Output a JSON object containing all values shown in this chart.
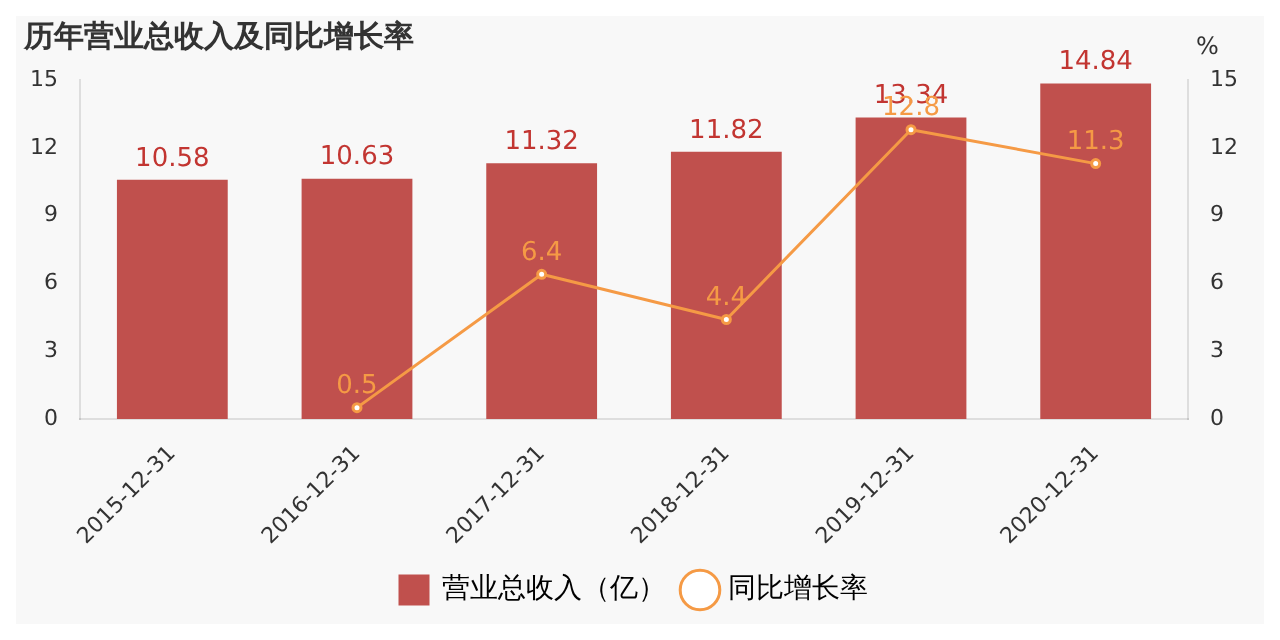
{
  "chart_data": {
    "type": "bar",
    "title": "历年营业总收入及同比增长率",
    "categories": [
      "2015-12-31",
      "2016-12-31",
      "2017-12-31",
      "2018-12-31",
      "2019-12-31",
      "2020-12-31"
    ],
    "series": [
      {
        "name": "营业总收入（亿）",
        "color": "#c0504d",
        "values": [
          10.58,
          10.63,
          11.32,
          11.82,
          13.34,
          14.84
        ]
      },
      {
        "name": "同比增长率",
        "type": "line",
        "axis": "y2",
        "color": "#f59a45",
        "marker": "circle",
        "values": [
          null,
          0.5,
          6.4,
          4.4,
          12.8,
          11.3
        ]
      }
    ],
    "ylim": [
      0,
      15
    ],
    "yticks": [
      0,
      3,
      6,
      9,
      12,
      15
    ],
    "y2label": "%",
    "y2lim": [
      0,
      15
    ],
    "y2ticks": [
      0,
      3,
      6,
      9,
      12,
      15
    ],
    "data_labels": true,
    "legend": "bottom",
    "grid": false
  }
}
